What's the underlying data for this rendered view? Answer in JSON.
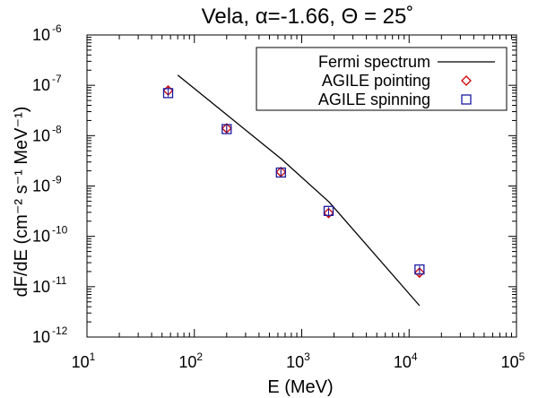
{
  "chart_data": {
    "type": "scatter",
    "title": "Vela, α=-1.66, Θ = 25˚",
    "xlabel": "E (MeV)",
    "ylabel": "dF/dE (cm⁻² s⁻¹ MeV⁻¹)",
    "xscale": "log",
    "yscale": "log",
    "xlim": [
      10,
      100000
    ],
    "ylim": [
      1e-12,
      1e-06
    ],
    "x_ticks": [
      {
        "base": "10",
        "exp": "1"
      },
      {
        "base": "10",
        "exp": "2"
      },
      {
        "base": "10",
        "exp": "3"
      },
      {
        "base": "10",
        "exp": "4"
      },
      {
        "base": "10",
        "exp": "5"
      }
    ],
    "y_ticks": [
      {
        "base": "10",
        "exp": "-12"
      },
      {
        "base": "10",
        "exp": "-11"
      },
      {
        "base": "10",
        "exp": "-10"
      },
      {
        "base": "10",
        "exp": "-9"
      },
      {
        "base": "10",
        "exp": "-8"
      },
      {
        "base": "10",
        "exp": "-7"
      },
      {
        "base": "10",
        "exp": "-6"
      }
    ],
    "legend_position": "top-right",
    "series": [
      {
        "name": "Fermi spectrum",
        "kind": "line",
        "color": "#000000",
        "x": [
          70,
          650,
          1800,
          12500
        ],
        "y": [
          1.6e-07,
          3.4e-09,
          4.8e-10,
          4.2e-12
        ]
      },
      {
        "name": "AGILE pointing",
        "kind": "marker",
        "marker": "diamond",
        "color": "#cc0000",
        "x": [
          57,
          200,
          640,
          1780,
          12500
        ],
        "y": [
          7.9e-08,
          1.4e-08,
          1.9e-09,
          2.9e-10,
          1.9e-11
        ]
      },
      {
        "name": "AGILE spinning",
        "kind": "marker",
        "marker": "square",
        "color": "#1a1aa0",
        "x": [
          57,
          200,
          640,
          1780,
          12500
        ],
        "y": [
          7e-08,
          1.35e-08,
          1.85e-09,
          3.2e-10,
          2.2e-11
        ]
      }
    ]
  }
}
